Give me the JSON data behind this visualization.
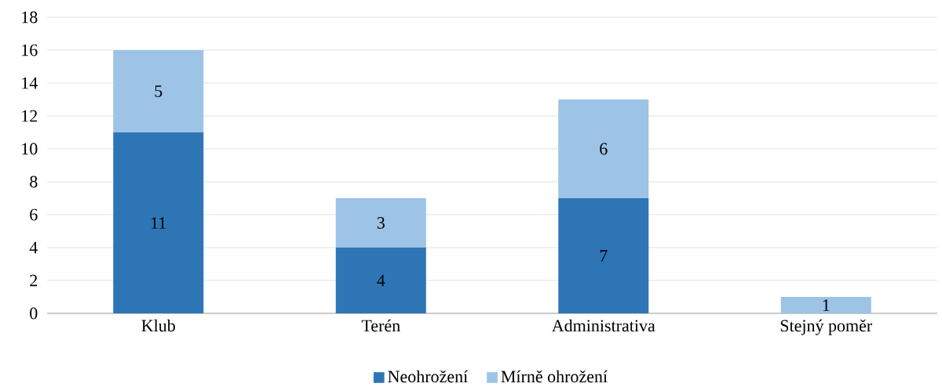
{
  "chart_data": {
    "type": "bar",
    "stacked": true,
    "categories": [
      "Klub",
      "Terén",
      "Administrativa",
      "Stejný poměr"
    ],
    "series": [
      {
        "name": "Neohrožení",
        "color": "#2e75b6",
        "values": [
          11,
          4,
          7,
          0
        ],
        "value_labels": [
          "11",
          "4",
          "7",
          null
        ]
      },
      {
        "name": "Mírně ohrožení",
        "color": "#9dc3e6",
        "values": [
          5,
          3,
          6,
          1
        ],
        "value_labels": [
          "5",
          "3",
          "6",
          "1"
        ]
      }
    ],
    "ylim": [
      0,
      18
    ],
    "yticks": [
      0,
      2,
      4,
      6,
      8,
      10,
      12,
      14,
      16,
      18
    ],
    "grid": "y",
    "legend": "bottom"
  }
}
